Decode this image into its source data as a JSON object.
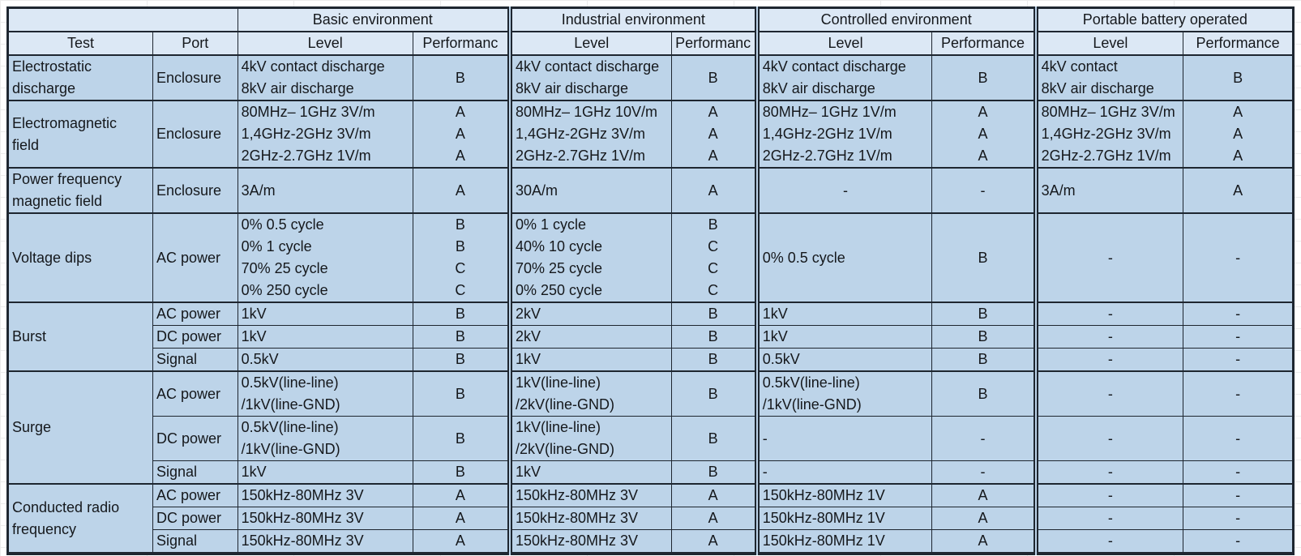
{
  "header": {
    "corner": "",
    "test_label": "Test",
    "port_label": "Port",
    "groups": [
      {
        "label": "Basic environment",
        "level": "Level",
        "performance": "Performanc"
      },
      {
        "label": "Industrial environment",
        "level": "Level",
        "performance": "Performanc"
      },
      {
        "label": "Controlled environment",
        "level": "Level",
        "performance": "Performance"
      },
      {
        "label": "Portable battery operated",
        "level": "Level",
        "performance": "Performance"
      }
    ]
  },
  "rows": [
    {
      "id": "electrostatic-discharge",
      "h": "rh55",
      "grp": true,
      "cells": [
        {
          "k": "test",
          "lines": [
            "Electrostatic",
            "discharge"
          ],
          "align": "al"
        },
        {
          "k": "port",
          "lines": [
            "Enclosure"
          ],
          "align": "al"
        },
        {
          "k": "basic-level",
          "lines": [
            "4kV contact discharge",
            "8kV air discharge"
          ],
          "align": "al"
        },
        {
          "k": "basic-perf",
          "lines": [
            "B"
          ],
          "align": "ac"
        },
        {
          "k": "industrial-level",
          "lines": [
            "4kV contact discharge",
            "8kV air discharge"
          ],
          "align": "al"
        },
        {
          "k": "industrial-perf",
          "lines": [
            "B"
          ],
          "align": "ac"
        },
        {
          "k": "controlled-level",
          "lines": [
            "4kV contact discharge",
            "8kV air discharge"
          ],
          "align": "al"
        },
        {
          "k": "controlled-perf",
          "lines": [
            "B"
          ],
          "align": "ac"
        },
        {
          "k": "portable-level",
          "lines": [
            "4kV contact",
            "8kV air discharge"
          ],
          "align": "al"
        },
        {
          "k": "portable-perf",
          "lines": [
            "B"
          ],
          "align": "ac"
        }
      ]
    },
    {
      "id": "electromagnetic-field",
      "h": "rh83",
      "grp": true,
      "cells": [
        {
          "k": "test",
          "lines": [
            "Electromagnetic",
            "field"
          ],
          "align": "al"
        },
        {
          "k": "port",
          "lines": [
            "Enclosure"
          ],
          "align": "al"
        },
        {
          "k": "basic-level",
          "lines": [
            "80MHz– 1GHz 3V/m",
            "1,4GHz-2GHz 3V/m",
            "2GHz-2.7GHz 1V/m"
          ],
          "align": "al"
        },
        {
          "k": "basic-perf",
          "lines": [
            "A",
            "A",
            "A"
          ],
          "align": "ac"
        },
        {
          "k": "industrial-level",
          "lines": [
            "80MHz– 1GHz 10V/m",
            "1,4GHz-2GHz 3V/m",
            "2GHz-2.7GHz 1V/m"
          ],
          "align": "al"
        },
        {
          "k": "industrial-perf",
          "lines": [
            "A",
            "A",
            "A"
          ],
          "align": "ac"
        },
        {
          "k": "controlled-level",
          "lines": [
            "80MHz– 1GHz 1V/m",
            "1,4GHz-2GHz 1V/m",
            "2GHz-2.7GHz 1V/m"
          ],
          "align": "al"
        },
        {
          "k": "controlled-perf",
          "lines": [
            "A",
            "A",
            "A"
          ],
          "align": "ac"
        },
        {
          "k": "portable-level",
          "lines": [
            "80MHz– 1GHz 3V/m",
            "1,4GHz-2GHz 3V/m",
            "2GHz-2.7GHz 1V/m"
          ],
          "align": "al"
        },
        {
          "k": "portable-perf",
          "lines": [
            "A",
            "A",
            "A"
          ],
          "align": "ac"
        }
      ]
    },
    {
      "id": "power-frequency-magnetic-field",
      "h": "rh55",
      "grp": true,
      "cells": [
        {
          "k": "test",
          "lines": [
            "Power frequency",
            "magnetic field"
          ],
          "align": "al"
        },
        {
          "k": "port",
          "lines": [
            "Enclosure"
          ],
          "align": "al"
        },
        {
          "k": "basic-level",
          "lines": [
            "3A/m"
          ],
          "align": "al"
        },
        {
          "k": "basic-perf",
          "lines": [
            "A"
          ],
          "align": "ac"
        },
        {
          "k": "industrial-level",
          "lines": [
            "30A/m"
          ],
          "align": "al"
        },
        {
          "k": "industrial-perf",
          "lines": [
            "A"
          ],
          "align": "ac"
        },
        {
          "k": "controlled-level",
          "lines": [
            "-"
          ],
          "align": "ac"
        },
        {
          "k": "controlled-perf",
          "lines": [
            "-"
          ],
          "align": "ac"
        },
        {
          "k": "portable-level",
          "lines": [
            "3A/m"
          ],
          "align": "al"
        },
        {
          "k": "portable-perf",
          "lines": [
            "A"
          ],
          "align": "ac"
        }
      ]
    },
    {
      "id": "voltage-dips",
      "h": "rh110",
      "grp": true,
      "cells": [
        {
          "k": "test",
          "lines": [
            "Voltage dips"
          ],
          "align": "al"
        },
        {
          "k": "port",
          "lines": [
            "AC power"
          ],
          "align": "al"
        },
        {
          "k": "basic-level",
          "lines": [
            "0% 0.5 cycle",
            "0% 1 cycle",
            "70% 25 cycle",
            "0% 250 cycle"
          ],
          "align": "al"
        },
        {
          "k": "basic-perf",
          "lines": [
            "B",
            "B",
            "C",
            "C"
          ],
          "align": "ac"
        },
        {
          "k": "industrial-level",
          "lines": [
            "0% 1 cycle",
            "40% 10 cycle",
            "70% 25 cycle",
            "0% 250 cycle"
          ],
          "align": "al"
        },
        {
          "k": "industrial-perf",
          "lines": [
            "B",
            "C",
            "C",
            "C"
          ],
          "align": "ac"
        },
        {
          "k": "controlled-level",
          "lines": [
            "0% 0.5 cycle"
          ],
          "align": "al"
        },
        {
          "k": "controlled-perf",
          "lines": [
            "B"
          ],
          "align": "ac"
        },
        {
          "k": "portable-level",
          "lines": [
            "-"
          ],
          "align": "ac"
        },
        {
          "k": "portable-perf",
          "lines": [
            "-"
          ],
          "align": "ac"
        }
      ]
    },
    {
      "id": "burst-ac",
      "h": "rh27",
      "grp": true,
      "cells": [
        {
          "k": "test",
          "lines": [
            "Burst"
          ],
          "align": "al",
          "rowspan": 3
        },
        {
          "k": "port",
          "lines": [
            "AC power"
          ],
          "align": "al"
        },
        {
          "k": "basic-level",
          "lines": [
            "1kV"
          ],
          "align": "al"
        },
        {
          "k": "basic-perf",
          "lines": [
            "B"
          ],
          "align": "ac"
        },
        {
          "k": "industrial-level",
          "lines": [
            "2kV"
          ],
          "align": "al"
        },
        {
          "k": "industrial-perf",
          "lines": [
            "B"
          ],
          "align": "ac"
        },
        {
          "k": "controlled-level",
          "lines": [
            "1kV"
          ],
          "align": "al"
        },
        {
          "k": "controlled-perf",
          "lines": [
            "B"
          ],
          "align": "ac"
        },
        {
          "k": "portable-level",
          "lines": [
            "-"
          ],
          "align": "ac"
        },
        {
          "k": "portable-perf",
          "lines": [
            "-"
          ],
          "align": "ac"
        }
      ]
    },
    {
      "id": "burst-dc",
      "h": "rh27",
      "cells": [
        {
          "k": "port",
          "lines": [
            "DC power"
          ],
          "align": "al"
        },
        {
          "k": "basic-level",
          "lines": [
            "1kV"
          ],
          "align": "al"
        },
        {
          "k": "basic-perf",
          "lines": [
            "B"
          ],
          "align": "ac"
        },
        {
          "k": "industrial-level",
          "lines": [
            "2kV"
          ],
          "align": "al"
        },
        {
          "k": "industrial-perf",
          "lines": [
            "B"
          ],
          "align": "ac"
        },
        {
          "k": "controlled-level",
          "lines": [
            "1kV"
          ],
          "align": "al"
        },
        {
          "k": "controlled-perf",
          "lines": [
            "B"
          ],
          "align": "ac"
        },
        {
          "k": "portable-level",
          "lines": [
            "-"
          ],
          "align": "ac"
        },
        {
          "k": "portable-perf",
          "lines": [
            "-"
          ],
          "align": "ac"
        }
      ]
    },
    {
      "id": "burst-signal",
      "h": "rh27",
      "cells": [
        {
          "k": "port",
          "lines": [
            "Signal"
          ],
          "align": "al"
        },
        {
          "k": "basic-level",
          "lines": [
            "0.5kV"
          ],
          "align": "al"
        },
        {
          "k": "basic-perf",
          "lines": [
            "B"
          ],
          "align": "ac"
        },
        {
          "k": "industrial-level",
          "lines": [
            "1kV"
          ],
          "align": "al"
        },
        {
          "k": "industrial-perf",
          "lines": [
            "B"
          ],
          "align": "ac"
        },
        {
          "k": "controlled-level",
          "lines": [
            "0.5kV"
          ],
          "align": "al"
        },
        {
          "k": "controlled-perf",
          "lines": [
            "B"
          ],
          "align": "ac"
        },
        {
          "k": "portable-level",
          "lines": [
            "-"
          ],
          "align": "ac"
        },
        {
          "k": "portable-perf",
          "lines": [
            "-"
          ],
          "align": "ac"
        }
      ]
    },
    {
      "id": "surge-ac",
      "h": "rh55",
      "grp": true,
      "cells": [
        {
          "k": "test",
          "lines": [
            "Surge"
          ],
          "align": "al",
          "rowspan": 3
        },
        {
          "k": "port",
          "lines": [
            "AC power"
          ],
          "align": "al"
        },
        {
          "k": "basic-level",
          "lines": [
            "0.5kV(line-line)",
            "/1kV(line-GND)"
          ],
          "align": "al"
        },
        {
          "k": "basic-perf",
          "lines": [
            "B"
          ],
          "align": "ac"
        },
        {
          "k": "industrial-level",
          "lines": [
            "1kV(line-line)",
            "/2kV(line-GND)"
          ],
          "align": "al"
        },
        {
          "k": "industrial-perf",
          "lines": [
            "B"
          ],
          "align": "ac"
        },
        {
          "k": "controlled-level",
          "lines": [
            "0.5kV(line-line)",
            "/1kV(line-GND)"
          ],
          "align": "al"
        },
        {
          "k": "controlled-perf",
          "lines": [
            "B"
          ],
          "align": "ac"
        },
        {
          "k": "portable-level",
          "lines": [
            "-"
          ],
          "align": "ac"
        },
        {
          "k": "portable-perf",
          "lines": [
            "-"
          ],
          "align": "ac"
        }
      ]
    },
    {
      "id": "surge-dc",
      "h": "rh55",
      "cells": [
        {
          "k": "port",
          "lines": [
            "DC power"
          ],
          "align": "al"
        },
        {
          "k": "basic-level",
          "lines": [
            "0.5kV(line-line)",
            "/1kV(line-GND)"
          ],
          "align": "al"
        },
        {
          "k": "basic-perf",
          "lines": [
            "B"
          ],
          "align": "ac"
        },
        {
          "k": "industrial-level",
          "lines": [
            "1kV(line-line)",
            "/2kV(line-GND)"
          ],
          "align": "al"
        },
        {
          "k": "industrial-perf",
          "lines": [
            "B"
          ],
          "align": "ac"
        },
        {
          "k": "controlled-level",
          "lines": [
            "-"
          ],
          "align": "al"
        },
        {
          "k": "controlled-perf",
          "lines": [
            "-"
          ],
          "align": "ac"
        },
        {
          "k": "portable-level",
          "lines": [
            "-"
          ],
          "align": "ac"
        },
        {
          "k": "portable-perf",
          "lines": [
            "-"
          ],
          "align": "ac"
        }
      ]
    },
    {
      "id": "surge-signal",
      "h": "rh27",
      "cells": [
        {
          "k": "port",
          "lines": [
            "Signal"
          ],
          "align": "al"
        },
        {
          "k": "basic-level",
          "lines": [
            "1kV"
          ],
          "align": "al"
        },
        {
          "k": "basic-perf",
          "lines": [
            "B"
          ],
          "align": "ac"
        },
        {
          "k": "industrial-level",
          "lines": [
            "1kV"
          ],
          "align": "al"
        },
        {
          "k": "industrial-perf",
          "lines": [
            "B"
          ],
          "align": "ac"
        },
        {
          "k": "controlled-level",
          "lines": [
            "-"
          ],
          "align": "al"
        },
        {
          "k": "controlled-perf",
          "lines": [
            "-"
          ],
          "align": "ac"
        },
        {
          "k": "portable-level",
          "lines": [
            "-"
          ],
          "align": "ac"
        },
        {
          "k": "portable-perf",
          "lines": [
            "-"
          ],
          "align": "ac"
        }
      ]
    },
    {
      "id": "conducted-rf-ac",
      "h": "rh27",
      "grp": true,
      "cells": [
        {
          "k": "test",
          "lines": [
            "Conducted radio",
            "frequency"
          ],
          "align": "al",
          "rowspan": 3
        },
        {
          "k": "port",
          "lines": [
            "AC power"
          ],
          "align": "al"
        },
        {
          "k": "basic-level",
          "lines": [
            "150kHz-80MHz 3V"
          ],
          "align": "al"
        },
        {
          "k": "basic-perf",
          "lines": [
            "A"
          ],
          "align": "ac"
        },
        {
          "k": "industrial-level",
          "lines": [
            "150kHz-80MHz 3V"
          ],
          "align": "al"
        },
        {
          "k": "industrial-perf",
          "lines": [
            "A"
          ],
          "align": "ac"
        },
        {
          "k": "controlled-level",
          "lines": [
            "150kHz-80MHz 1V"
          ],
          "align": "al"
        },
        {
          "k": "controlled-perf",
          "lines": [
            "A"
          ],
          "align": "ac"
        },
        {
          "k": "portable-level",
          "lines": [
            "-"
          ],
          "align": "ac"
        },
        {
          "k": "portable-perf",
          "lines": [
            "-"
          ],
          "align": "ac"
        }
      ]
    },
    {
      "id": "conducted-rf-dc",
      "h": "rh27",
      "cells": [
        {
          "k": "port",
          "lines": [
            "DC power"
          ],
          "align": "al"
        },
        {
          "k": "basic-level",
          "lines": [
            "150kHz-80MHz 3V"
          ],
          "align": "al"
        },
        {
          "k": "basic-perf",
          "lines": [
            "A"
          ],
          "align": "ac"
        },
        {
          "k": "industrial-level",
          "lines": [
            "150kHz-80MHz 3V"
          ],
          "align": "al"
        },
        {
          "k": "industrial-perf",
          "lines": [
            "A"
          ],
          "align": "ac"
        },
        {
          "k": "controlled-level",
          "lines": [
            "150kHz-80MHz 1V"
          ],
          "align": "al"
        },
        {
          "k": "controlled-perf",
          "lines": [
            "A"
          ],
          "align": "ac"
        },
        {
          "k": "portable-level",
          "lines": [
            "-"
          ],
          "align": "ac"
        },
        {
          "k": "portable-perf",
          "lines": [
            "-"
          ],
          "align": "ac"
        }
      ]
    },
    {
      "id": "conducted-rf-signal",
      "h": "rh27",
      "cells": [
        {
          "k": "port",
          "lines": [
            "Signal"
          ],
          "align": "al"
        },
        {
          "k": "basic-level",
          "lines": [
            "150kHz-80MHz 3V"
          ],
          "align": "al"
        },
        {
          "k": "basic-perf",
          "lines": [
            "A"
          ],
          "align": "ac"
        },
        {
          "k": "industrial-level",
          "lines": [
            "150kHz-80MHz 3V"
          ],
          "align": "al"
        },
        {
          "k": "industrial-perf",
          "lines": [
            "A"
          ],
          "align": "ac"
        },
        {
          "k": "controlled-level",
          "lines": [
            "150kHz-80MHz 1V"
          ],
          "align": "al"
        },
        {
          "k": "controlled-perf",
          "lines": [
            "A"
          ],
          "align": "ac"
        },
        {
          "k": "portable-level",
          "lines": [
            "-"
          ],
          "align": "ac"
        },
        {
          "k": "portable-perf",
          "lines": [
            "-"
          ],
          "align": "ac"
        }
      ]
    }
  ],
  "colors": {
    "header_fill": "#dce8f5",
    "body_fill": "#bdd4e9",
    "border": "#1e2630",
    "text": "#15181c"
  }
}
